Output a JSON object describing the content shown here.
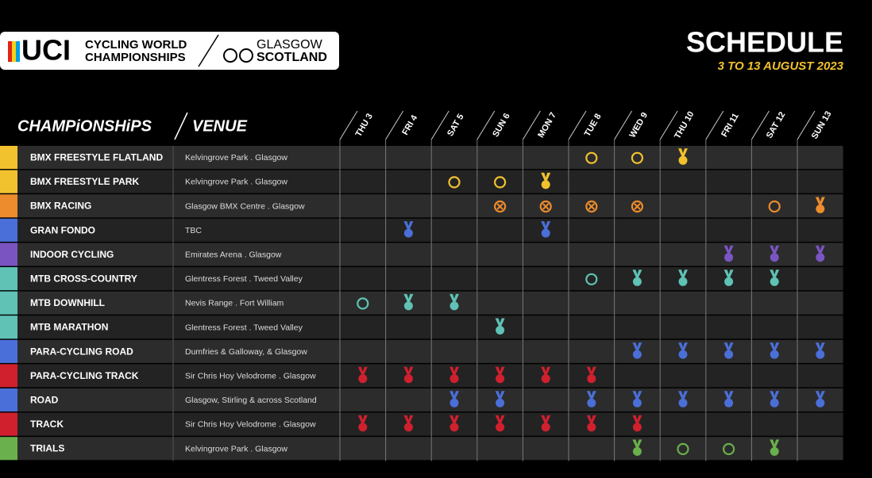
{
  "header": {
    "logo_uci": "UCI",
    "logo_line1": "CYCLING WORLD",
    "logo_line2": "CHAMPIONSHIPS",
    "city_line1": "GLASGOW",
    "city_line2": "SCOTLAND",
    "title": "SCHEDULE",
    "dates": "3 TO 13 AUGUST 2023"
  },
  "table": {
    "col_championships": "CHAMPiONSHiPS",
    "col_venue": "VENUE",
    "days": [
      "THU 3",
      "FRI 4",
      "SAT 5",
      "SUN 6",
      "MON 7",
      "TUE 8",
      "WED 9",
      "THU 10",
      "FRI 11",
      "SAT 12",
      "SUN 13"
    ],
    "rows": [
      {
        "name": "BMX FREESTYLE FLATLAND",
        "venue": "Kelvingrove Park . Glasgow",
        "color": "#f2c12e",
        "cells": [
          null,
          null,
          null,
          null,
          null,
          "o",
          "o",
          "m",
          null,
          null,
          null
        ]
      },
      {
        "name": "BMX FREESTYLE PARK",
        "venue": "Kelvingrove Park . Glasgow",
        "color": "#f2c12e",
        "cells": [
          null,
          null,
          "o",
          "o",
          "m",
          null,
          null,
          null,
          null,
          null,
          null
        ]
      },
      {
        "name": "BMX RACING",
        "venue": "Glasgow BMX Centre . Glasgow",
        "color": "#ec8c2c",
        "cells": [
          null,
          null,
          null,
          "x",
          "x",
          "x",
          "x",
          null,
          null,
          "o",
          "m"
        ]
      },
      {
        "name": "GRAN FONDO",
        "venue": "TBC",
        "color": "#4a6fd8",
        "cells": [
          null,
          "m",
          null,
          null,
          "m",
          null,
          null,
          null,
          null,
          null,
          null
        ]
      },
      {
        "name": "INDOOR CYCLING",
        "venue": "Emirates Arena . Glasgow",
        "color": "#7a55c2",
        "cells": [
          null,
          null,
          null,
          null,
          null,
          null,
          null,
          null,
          "m",
          "m",
          "m"
        ]
      },
      {
        "name": "MTB CROSS-COUNTRY",
        "venue": "Glentress Forest . Tweed Valley",
        "color": "#5fc2b5",
        "cells": [
          null,
          null,
          null,
          null,
          null,
          "o",
          "m",
          "m",
          "m",
          "m",
          null
        ]
      },
      {
        "name": "MTB DOWNHILL",
        "venue": "Nevis Range . Fort William",
        "color": "#5fc2b5",
        "cells": [
          "o",
          "m",
          "m",
          null,
          null,
          null,
          null,
          null,
          null,
          null,
          null
        ]
      },
      {
        "name": "MTB MARATHON",
        "venue": "Glentress Forest . Tweed Valley",
        "color": "#5fc2b5",
        "cells": [
          null,
          null,
          null,
          "m",
          null,
          null,
          null,
          null,
          null,
          null,
          null
        ]
      },
      {
        "name": "PARA-CYCLING ROAD",
        "venue": "Dumfries & Galloway, & Glasgow",
        "color": "#4a6fd8",
        "cells": [
          null,
          null,
          null,
          null,
          null,
          null,
          "m",
          "m",
          "m",
          "m",
          "m"
        ]
      },
      {
        "name": "PARA-CYCLING TRACK",
        "venue": "Sir Chris Hoy Velodrome . Glasgow",
        "color": "#d0202e",
        "cells": [
          "m",
          "m",
          "m",
          "m",
          "m",
          "m",
          null,
          null,
          null,
          null,
          null
        ]
      },
      {
        "name": "ROAD",
        "venue": "Glasgow, Stirling & across Scotland",
        "color": "#4a6fd8",
        "cells": [
          null,
          null,
          "m",
          "m",
          null,
          "m",
          "m",
          "m",
          "m",
          "m",
          "m"
        ]
      },
      {
        "name": "TRACK",
        "venue": "Sir Chris Hoy Velodrome . Glasgow",
        "color": "#d0202e",
        "cells": [
          "m",
          "m",
          "m",
          "m",
          "m",
          "m",
          "m",
          null,
          null,
          null,
          null
        ]
      },
      {
        "name": "TRIALS",
        "venue": "Kelvingrove Park . Glasgow",
        "color": "#6ab04c",
        "cells": [
          null,
          null,
          null,
          null,
          null,
          null,
          "m",
          "o",
          "o",
          "m",
          null
        ]
      }
    ]
  }
}
